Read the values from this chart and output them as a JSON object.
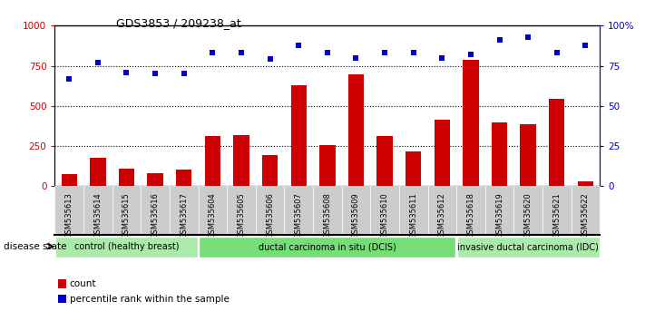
{
  "title": "GDS3853 / 209238_at",
  "samples": [
    "GSM535613",
    "GSM535614",
    "GSM535615",
    "GSM535616",
    "GSM535617",
    "GSM535604",
    "GSM535605",
    "GSM535606",
    "GSM535607",
    "GSM535608",
    "GSM535609",
    "GSM535610",
    "GSM535611",
    "GSM535612",
    "GSM535618",
    "GSM535619",
    "GSM535620",
    "GSM535621",
    "GSM535622"
  ],
  "counts": [
    75,
    175,
    110,
    80,
    105,
    315,
    320,
    195,
    630,
    255,
    695,
    310,
    215,
    415,
    785,
    395,
    385,
    545,
    30
  ],
  "percentiles": [
    67,
    77,
    71,
    70,
    70,
    83,
    83,
    79,
    88,
    83,
    80,
    83,
    83,
    80,
    82,
    91,
    93,
    83,
    88
  ],
  "bar_color": "#cc0000",
  "dot_color": "#0000cc",
  "ylim_left": [
    0,
    1000
  ],
  "ylim_right": [
    0,
    100
  ],
  "yticks_left": [
    0,
    250,
    500,
    750,
    1000
  ],
  "yticks_right": [
    0,
    25,
    50,
    75,
    100
  ],
  "ytick_labels_right": [
    "0",
    "25",
    "50",
    "75",
    "100%"
  ],
  "groups": [
    {
      "label": "control (healthy breast)",
      "start": 0,
      "end": 5,
      "color": "#aaeaaa"
    },
    {
      "label": "ductal carcinoma in situ (DCIS)",
      "start": 5,
      "end": 14,
      "color": "#77dd77"
    },
    {
      "label": "invasive ductal carcinoma (IDC)",
      "start": 14,
      "end": 19,
      "color": "#aaeaaa"
    }
  ],
  "disease_state_label": "disease state",
  "legend_count_label": "count",
  "legend_percentile_label": "percentile rank within the sample",
  "tick_bg_color": "#cccccc",
  "grid_color": "#000000",
  "top_border_color": "#000000"
}
